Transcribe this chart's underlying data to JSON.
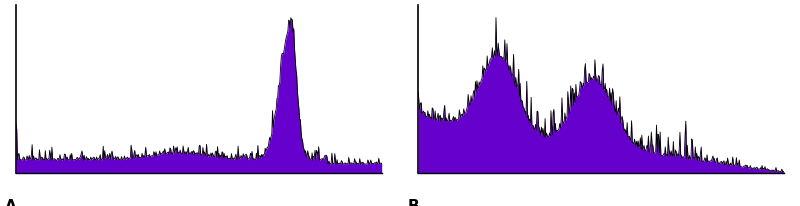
{
  "background_color": "#ffffff",
  "fill_color": "#6600CC",
  "line_color": "#000000",
  "label_A": "A",
  "label_B": "B",
  "label_fontsize": 11,
  "label_fontweight": "bold"
}
